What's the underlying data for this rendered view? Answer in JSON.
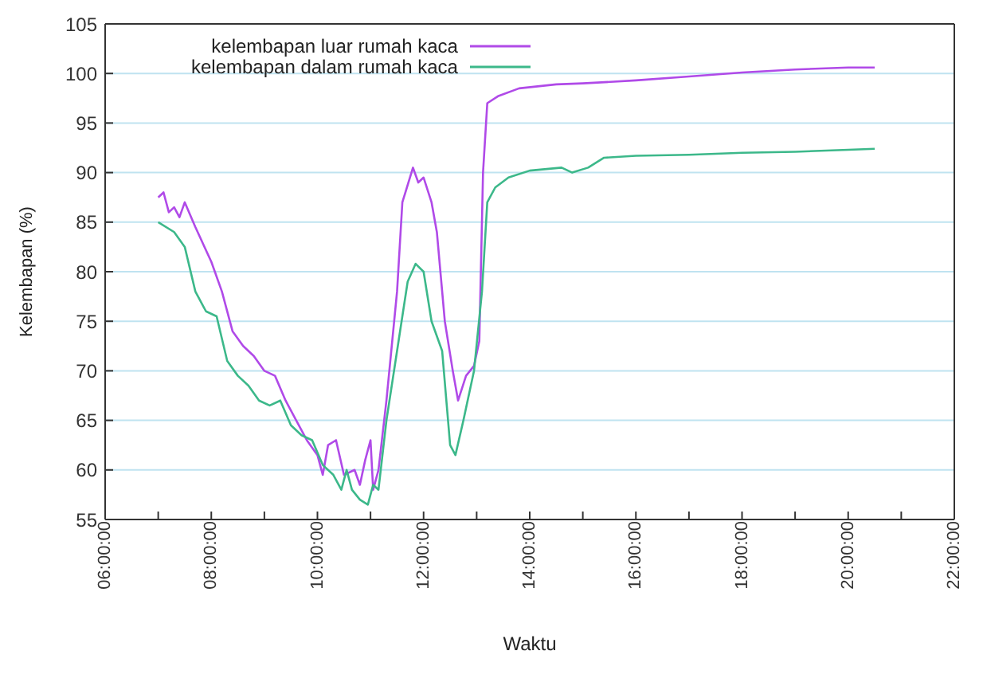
{
  "chart_data": {
    "type": "line",
    "xlabel": "Waktu",
    "ylabel": "Kelembapan (%)",
    "xlim": [
      6,
      22
    ],
    "ylim": [
      55,
      105
    ],
    "xticks": [
      {
        "value": 6,
        "label": "06:00:00"
      },
      {
        "value": 7,
        "label": null
      },
      {
        "value": 8,
        "label": "08:00:00"
      },
      {
        "value": 9,
        "label": null
      },
      {
        "value": 10,
        "label": "10:00:00"
      },
      {
        "value": 11,
        "label": null
      },
      {
        "value": 12,
        "label": "12:00:00"
      },
      {
        "value": 13,
        "label": null
      },
      {
        "value": 14,
        "label": "14:00:00"
      },
      {
        "value": 15,
        "label": null
      },
      {
        "value": 16,
        "label": "16:00:00"
      },
      {
        "value": 17,
        "label": null
      },
      {
        "value": 18,
        "label": "18:00:00"
      },
      {
        "value": 19,
        "label": null
      },
      {
        "value": 20,
        "label": "20:00:00"
      },
      {
        "value": 21,
        "label": null
      },
      {
        "value": 22,
        "label": "22:00:00"
      }
    ],
    "yticks": [
      55,
      60,
      65,
      70,
      75,
      80,
      85,
      90,
      95,
      100,
      105
    ],
    "grid": "y",
    "legend": "top left",
    "marker": "none",
    "line_style": "solid",
    "series": [
      {
        "name": "kelembapan luar rumah kaca",
        "color": "#b04ae8",
        "x": [
          7.0,
          7.1,
          7.2,
          7.3,
          7.4,
          7.5,
          7.7,
          8.0,
          8.2,
          8.4,
          8.6,
          8.8,
          9.0,
          9.2,
          9.4,
          9.6,
          9.8,
          10.0,
          10.1,
          10.2,
          10.35,
          10.5,
          10.7,
          10.8,
          10.9,
          11.0,
          11.05,
          11.15,
          11.3,
          11.5,
          11.6,
          11.8,
          11.9,
          12.0,
          12.15,
          12.25,
          12.4,
          12.55,
          12.65,
          12.8,
          12.95,
          13.05,
          13.12,
          13.2,
          13.4,
          13.8,
          14.5,
          15.0,
          16.0,
          17.0,
          18.0,
          19.0,
          20.0,
          20.5
        ],
        "values": [
          87.5,
          88,
          86,
          86.5,
          85.5,
          87,
          84.5,
          81,
          78,
          74,
          72.5,
          71.5,
          70,
          69.5,
          67,
          65,
          63,
          61.5,
          59.5,
          62.5,
          63,
          59.5,
          60,
          58.5,
          61,
          63,
          58,
          60,
          67,
          78,
          87,
          90.5,
          89,
          89.5,
          87,
          84,
          75,
          70,
          67,
          69.5,
          70.5,
          73,
          90,
          97,
          97.7,
          98.5,
          98.9,
          99,
          99.3,
          99.7,
          100.1,
          100.4,
          100.6,
          100.6
        ]
      },
      {
        "name": "kelembapan dalam rumah kaca",
        "color": "#3cb88a",
        "x": [
          7.0,
          7.3,
          7.5,
          7.7,
          7.9,
          8.1,
          8.3,
          8.5,
          8.7,
          8.9,
          9.1,
          9.3,
          9.5,
          9.7,
          9.9,
          10.1,
          10.3,
          10.45,
          10.55,
          10.65,
          10.8,
          10.95,
          11.05,
          11.15,
          11.3,
          11.5,
          11.7,
          11.85,
          12.0,
          12.15,
          12.35,
          12.5,
          12.6,
          12.75,
          12.95,
          13.1,
          13.2,
          13.35,
          13.6,
          14.0,
          14.6,
          14.8,
          15.1,
          15.4,
          16.0,
          17.0,
          18.0,
          19.0,
          20.0,
          20.5
        ],
        "values": [
          85,
          84,
          82.5,
          78,
          76,
          75.5,
          71,
          69.5,
          68.5,
          67,
          66.5,
          67,
          64.5,
          63.5,
          63,
          60.5,
          59.5,
          58,
          60,
          58,
          57,
          56.5,
          58.5,
          58,
          65,
          72,
          79,
          80.8,
          80,
          75,
          72,
          62.5,
          61.5,
          65,
          70,
          78,
          87,
          88.5,
          89.5,
          90.2,
          90.5,
          90,
          90.5,
          91.5,
          91.7,
          91.8,
          92,
          92.1,
          92.3,
          92.4
        ]
      }
    ]
  }
}
